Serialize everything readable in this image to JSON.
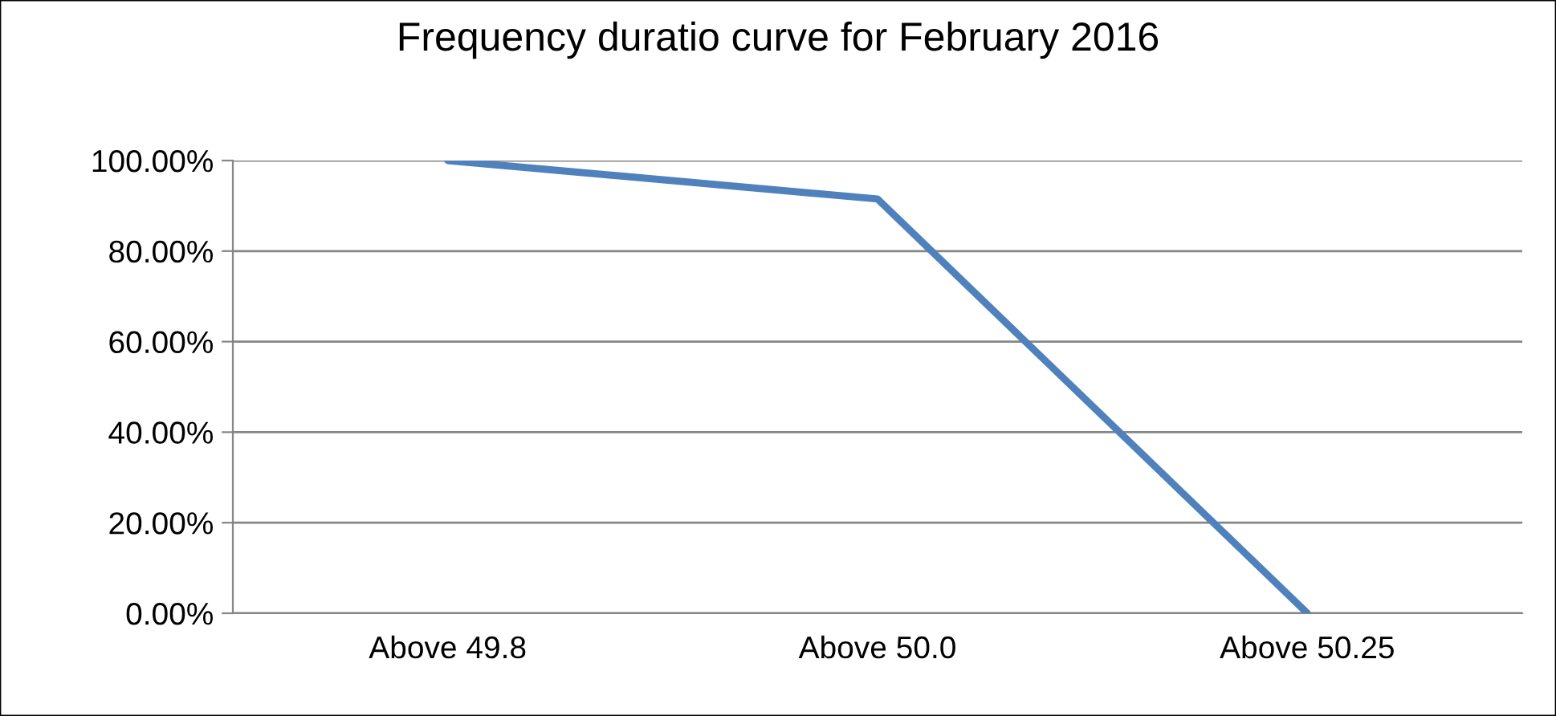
{
  "chart_data": {
    "type": "line",
    "title": "Frequency duratio curve for February 2016",
    "categories": [
      "Above 49.8",
      "Above 50.0",
      "Above 50.25"
    ],
    "series": [
      {
        "color": "#4f81bd",
        "values": [
          100,
          91.5,
          0
        ]
      }
    ],
    "ylim": [
      0,
      100
    ],
    "yticks": [
      {
        "value": 0,
        "label": "0.00%"
      },
      {
        "value": 20,
        "label": "20.00%"
      },
      {
        "value": 40,
        "label": "40.00%"
      },
      {
        "value": 60,
        "label": "60.00%"
      },
      {
        "value": 80,
        "label": "80.00%"
      },
      {
        "value": 100,
        "label": "100.00%"
      }
    ],
    "grid": "y",
    "legend": false,
    "marker": "none",
    "line_style": "solid"
  }
}
